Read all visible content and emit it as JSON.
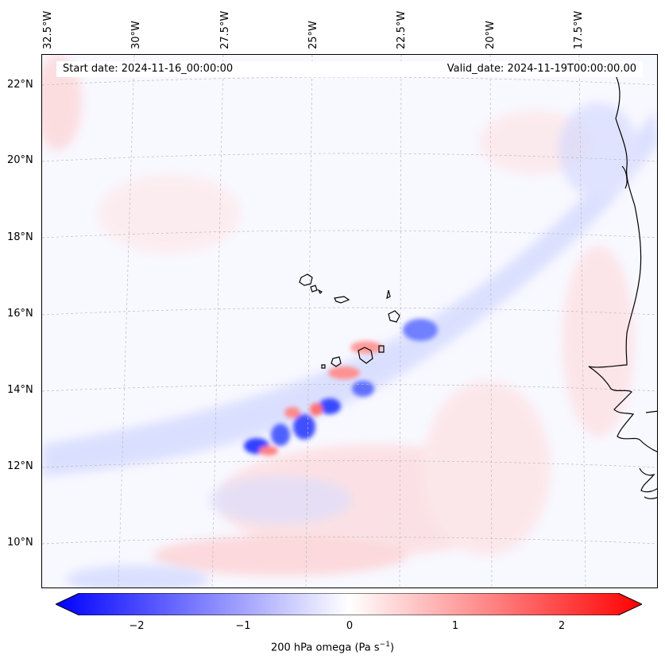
{
  "map": {
    "title_left": "Start date: 2024-11-16_00:00:00",
    "title_right": "Valid_date: 2024-11-19T00:00:00.00",
    "lon_labels": [
      "32.5°W",
      "30°W",
      "27.5°W",
      "25°W",
      "22.5°W",
      "20°W",
      "17.5°W"
    ],
    "lat_labels": [
      "22°N",
      "20°N",
      "18°N",
      "16°N",
      "14°N",
      "12°N",
      "10°N"
    ],
    "colors": {
      "negative": "#0000ff",
      "zero": "#ffffff",
      "positive": "#ff0000",
      "grid": "#bbbbbb",
      "coast": "#000000"
    }
  },
  "colorbar": {
    "ticks": [
      "−2",
      "−1",
      "0",
      "1",
      "2"
    ],
    "label": "200 hPa omega (Pa s",
    "label_sup": "−1",
    "label_close": ")",
    "range": [
      -2.75,
      2.75
    ]
  }
}
